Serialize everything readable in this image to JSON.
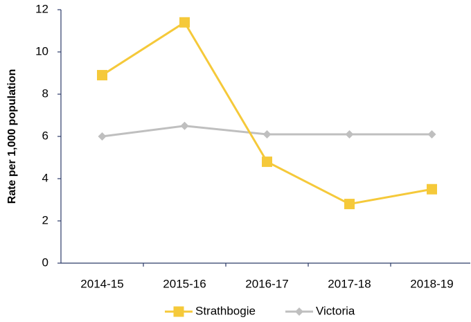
{
  "chart_data": {
    "type": "line",
    "y_label": "Rate per 1,000 population",
    "categories": [
      "2014-15",
      "2015-16",
      "2016-17",
      "2017-18",
      "2018-19"
    ],
    "series": [
      {
        "name": "Strathbogie",
        "color": "#f5c93a",
        "marker": "square",
        "values": [
          8.9,
          11.4,
          4.8,
          2.8,
          3.5
        ]
      },
      {
        "name": "Victoria",
        "color": "#bfbfbf",
        "marker": "diamond",
        "values": [
          6.0,
          6.5,
          6.1,
          6.1,
          6.1
        ]
      }
    ],
    "ylim": [
      0,
      12
    ],
    "yticks": [
      0,
      2,
      4,
      6,
      8,
      10,
      12
    ],
    "grid": false,
    "legend": "bottom"
  }
}
